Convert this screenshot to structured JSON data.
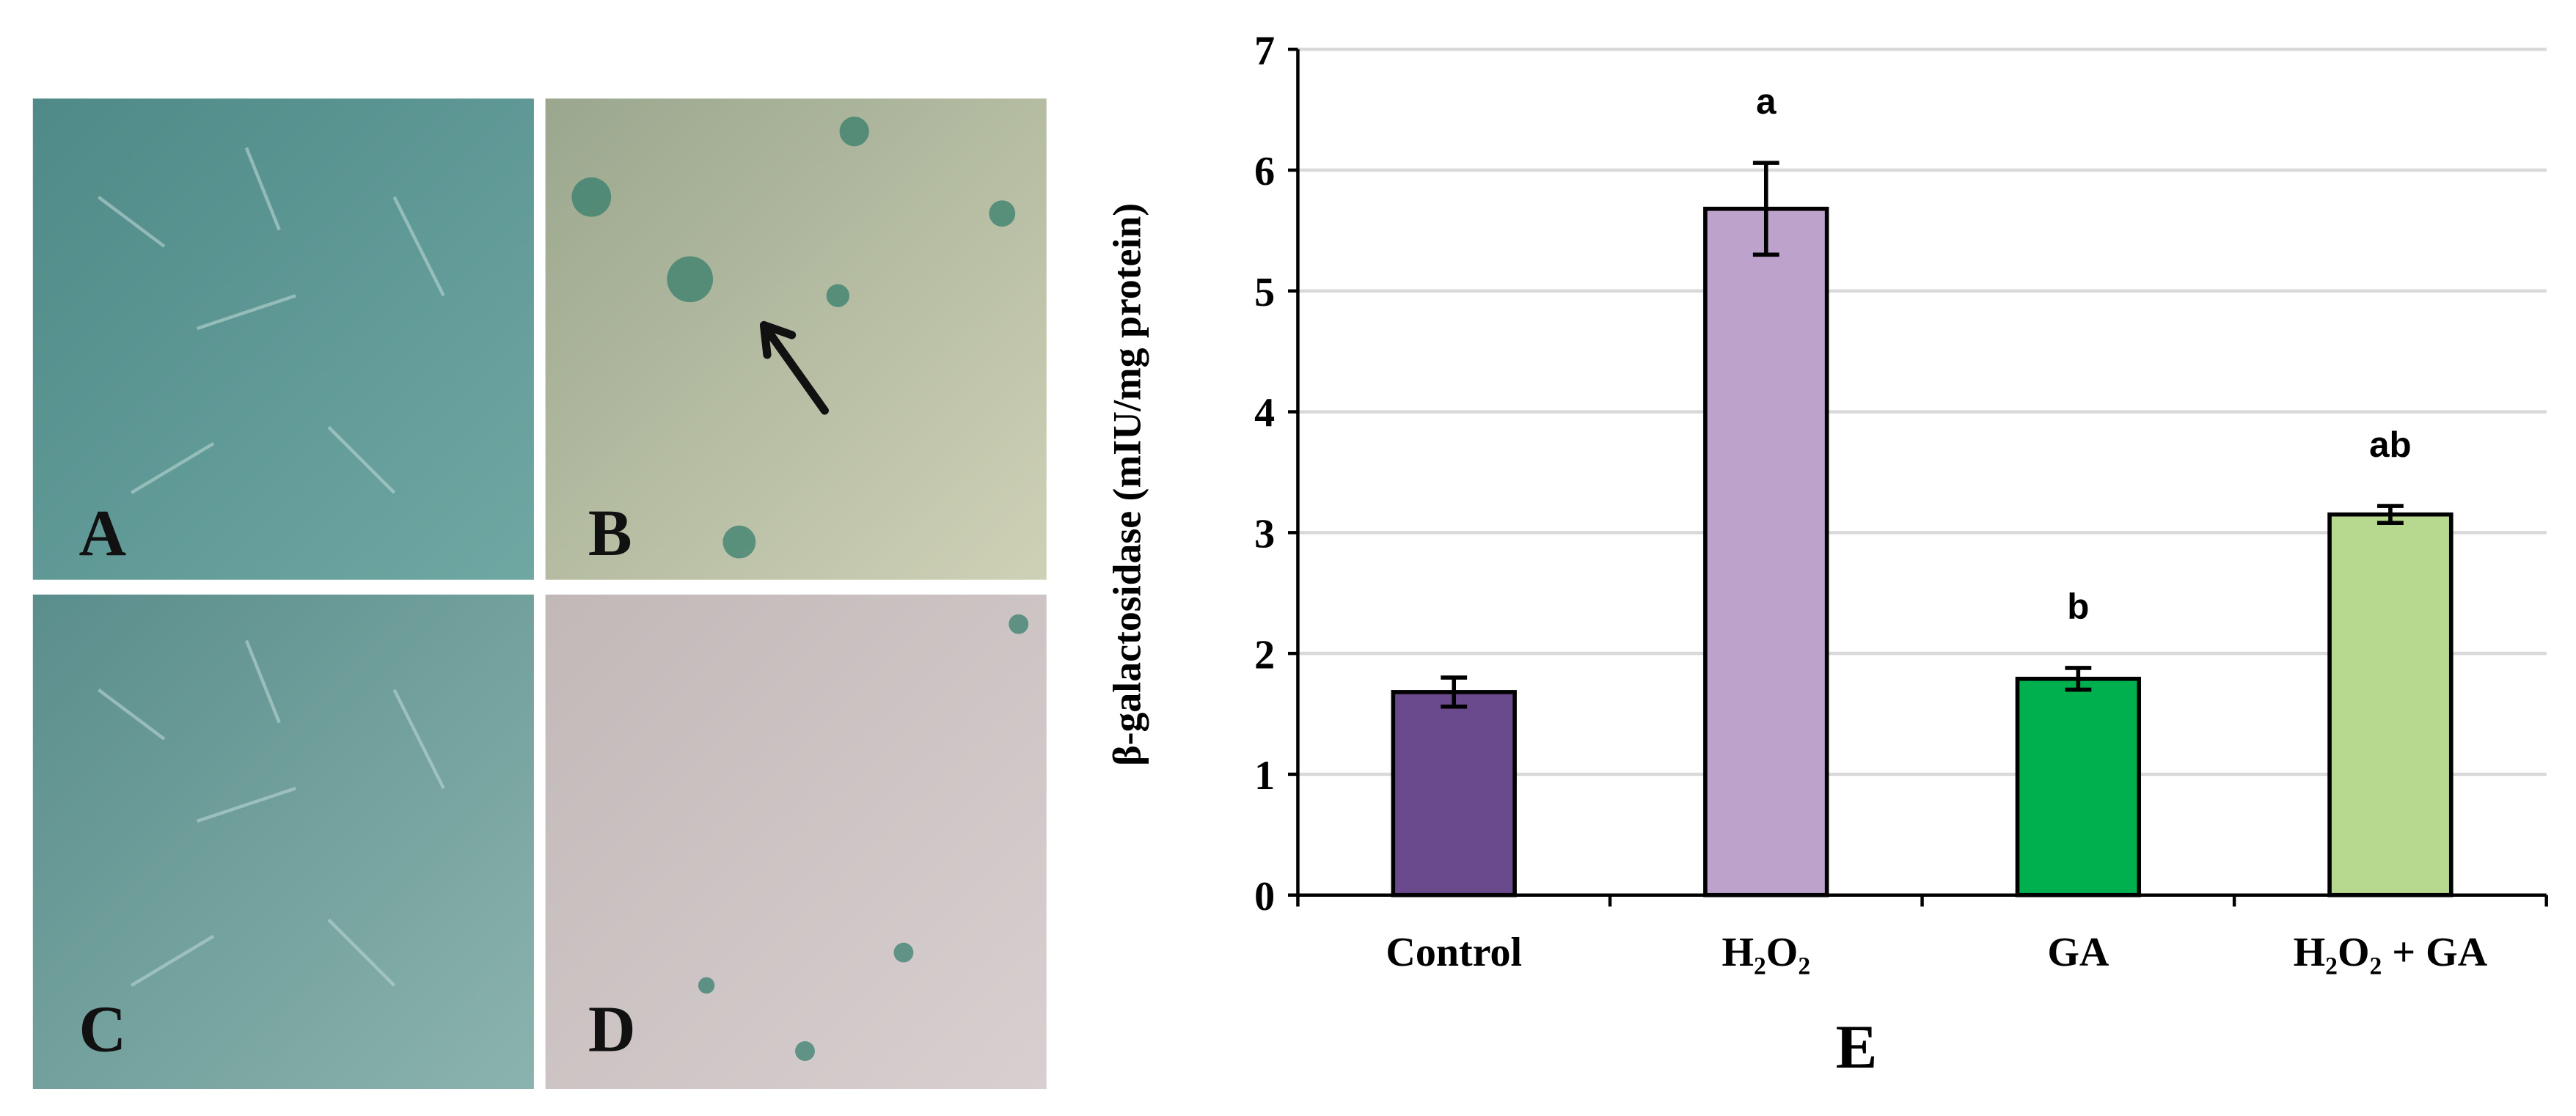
{
  "chart_data": {
    "type": "bar",
    "panel_labels": [
      "A",
      "B",
      "C",
      "D"
    ],
    "figure_label": "E",
    "y_label": "β-galactosidase (mIU/mg protein)",
    "categories": [
      "Control",
      "H₂O₂",
      "GA",
      "H₂O₂ + GA"
    ],
    "values": [
      1.68,
      5.68,
      1.79,
      3.15
    ],
    "errors": [
      0.12,
      0.38,
      0.09,
      0.07
    ],
    "annotations": [
      null,
      "a",
      "b",
      "ab"
    ],
    "colors": [
      "#6a4a8c",
      "#bda3cc",
      "#00b04f",
      "#b7d88f"
    ],
    "ylim": [
      0,
      7
    ],
    "yticks": [
      0,
      1,
      2,
      3,
      4,
      5,
      6,
      7
    ],
    "grid": true
  }
}
